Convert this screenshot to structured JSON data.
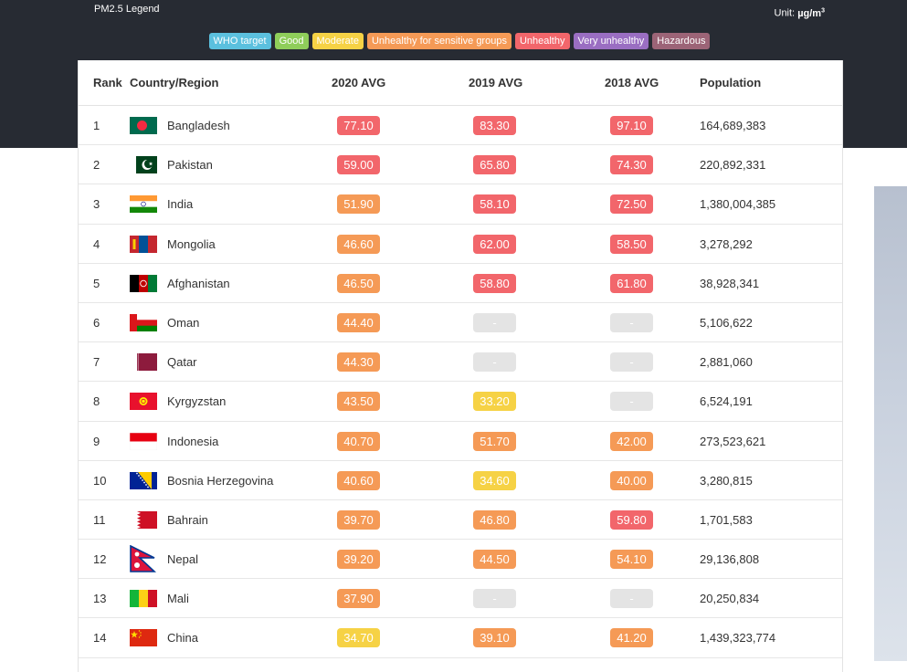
{
  "legend": {
    "title": "PM2.5 Legend",
    "unit_prefix": "Unit: ",
    "unit_value": "µg/m",
    "unit_sup": "3",
    "categories": [
      {
        "label": "WHO target",
        "color": "#5bc0de"
      },
      {
        "label": "Good",
        "color": "#8fce5a"
      },
      {
        "label": "Moderate",
        "color": "#f6d245"
      },
      {
        "label": "Unhealthy for sensitive groups",
        "color": "#f59a56"
      },
      {
        "label": "Unhealthy",
        "color": "#f2666b"
      },
      {
        "label": "Very unhealthy",
        "color": "#9a6ec2"
      },
      {
        "label": "Hazardous",
        "color": "#9c6477"
      }
    ]
  },
  "colors": {
    "header_bg": "#272b33",
    "moderate": "#f6d245",
    "sensitive": "#f59a56",
    "unhealthy": "#f2666b",
    "nodata": "#e4e4e4"
  },
  "table": {
    "headers": {
      "rank": "Rank",
      "country": "Country/Region",
      "y2020": "2020 AVG",
      "y2019": "2019 AVG",
      "y2018": "2018 AVG",
      "population": "Population"
    },
    "rows": [
      {
        "rank": "1",
        "flag": "bangladesh-flag-icon",
        "country": "Bangladesh",
        "v2020": "77.10",
        "c2020": "unhealthy",
        "v2019": "83.30",
        "c2019": "unhealthy",
        "v2018": "97.10",
        "c2018": "unhealthy",
        "population": "164,689,383"
      },
      {
        "rank": "2",
        "flag": "pakistan-flag-icon",
        "country": "Pakistan",
        "v2020": "59.00",
        "c2020": "unhealthy",
        "v2019": "65.80",
        "c2019": "unhealthy",
        "v2018": "74.30",
        "c2018": "unhealthy",
        "population": "220,892,331"
      },
      {
        "rank": "3",
        "flag": "india-flag-icon",
        "country": "India",
        "v2020": "51.90",
        "c2020": "sensitive",
        "v2019": "58.10",
        "c2019": "unhealthy",
        "v2018": "72.50",
        "c2018": "unhealthy",
        "population": "1,380,004,385"
      },
      {
        "rank": "4",
        "flag": "mongolia-flag-icon",
        "country": "Mongolia",
        "v2020": "46.60",
        "c2020": "sensitive",
        "v2019": "62.00",
        "c2019": "unhealthy",
        "v2018": "58.50",
        "c2018": "unhealthy",
        "population": "3,278,292"
      },
      {
        "rank": "5",
        "flag": "afghanistan-flag-icon",
        "country": "Afghanistan",
        "v2020": "46.50",
        "c2020": "sensitive",
        "v2019": "58.80",
        "c2019": "unhealthy",
        "v2018": "61.80",
        "c2018": "unhealthy",
        "population": "38,928,341"
      },
      {
        "rank": "6",
        "flag": "oman-flag-icon",
        "country": "Oman",
        "v2020": "44.40",
        "c2020": "sensitive",
        "v2019": "-",
        "c2019": "nodata",
        "v2018": "-",
        "c2018": "nodata",
        "population": "5,106,622"
      },
      {
        "rank": "7",
        "flag": "qatar-flag-icon",
        "country": "Qatar",
        "v2020": "44.30",
        "c2020": "sensitive",
        "v2019": "-",
        "c2019": "nodata",
        "v2018": "-",
        "c2018": "nodata",
        "population": "2,881,060"
      },
      {
        "rank": "8",
        "flag": "kyrgyzstan-flag-icon",
        "country": "Kyrgyzstan",
        "v2020": "43.50",
        "c2020": "sensitive",
        "v2019": "33.20",
        "c2019": "moderate",
        "v2018": "-",
        "c2018": "nodata",
        "population": "6,524,191"
      },
      {
        "rank": "9",
        "flag": "indonesia-flag-icon",
        "country": "Indonesia",
        "v2020": "40.70",
        "c2020": "sensitive",
        "v2019": "51.70",
        "c2019": "sensitive",
        "v2018": "42.00",
        "c2018": "sensitive",
        "population": "273,523,621"
      },
      {
        "rank": "10",
        "flag": "bosnia-flag-icon",
        "country": "Bosnia Herzegovina",
        "v2020": "40.60",
        "c2020": "sensitive",
        "v2019": "34.60",
        "c2019": "moderate",
        "v2018": "40.00",
        "c2018": "sensitive",
        "population": "3,280,815"
      },
      {
        "rank": "11",
        "flag": "bahrain-flag-icon",
        "country": "Bahrain",
        "v2020": "39.70",
        "c2020": "sensitive",
        "v2019": "46.80",
        "c2019": "sensitive",
        "v2018": "59.80",
        "c2018": "unhealthy",
        "population": "1,701,583"
      },
      {
        "rank": "12",
        "flag": "nepal-flag-icon",
        "country": "Nepal",
        "v2020": "39.20",
        "c2020": "sensitive",
        "v2019": "44.50",
        "c2019": "sensitive",
        "v2018": "54.10",
        "c2018": "sensitive",
        "population": "29,136,808"
      },
      {
        "rank": "13",
        "flag": "mali-flag-icon",
        "country": "Mali",
        "v2020": "37.90",
        "c2020": "sensitive",
        "v2019": "-",
        "c2019": "nodata",
        "v2018": "-",
        "c2018": "nodata",
        "population": "20,250,834"
      },
      {
        "rank": "14",
        "flag": "china-flag-icon",
        "country": "China",
        "v2020": "34.70",
        "c2020": "moderate",
        "v2019": "39.10",
        "c2019": "sensitive",
        "v2018": "41.20",
        "c2018": "sensitive",
        "population": "1,439,323,774"
      }
    ]
  }
}
